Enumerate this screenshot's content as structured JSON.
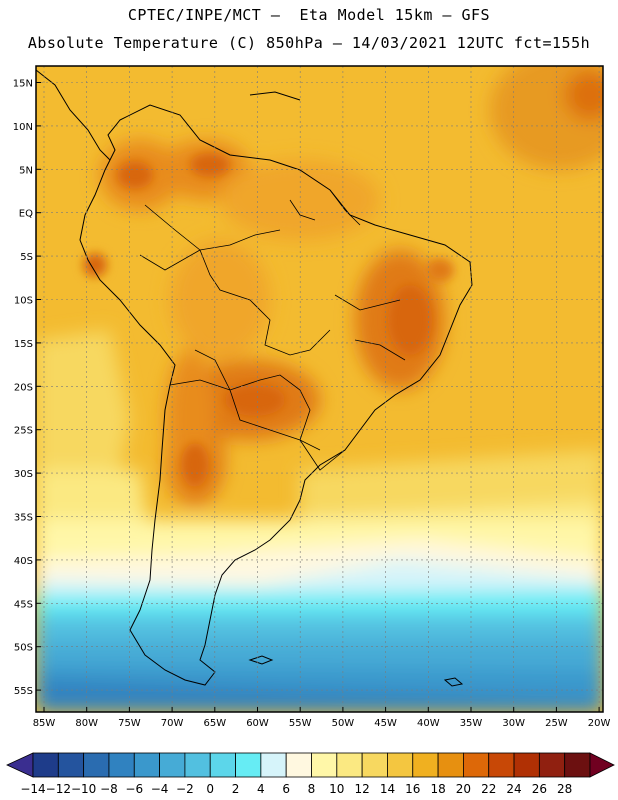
{
  "header": {
    "line1": "CPTEC/INPE/MCT –  Eta Model 15km – GFS",
    "line2": "Absolute Temperature (C) 850hPa – 14/03/2021 12UTC fct=155h"
  },
  "axes": {
    "lat_labels": [
      "15N",
      "10N",
      "5N",
      "EQ",
      "5S",
      "10S",
      "15S",
      "20S",
      "25S",
      "30S",
      "35S",
      "40S",
      "45S",
      "50S",
      "55S"
    ],
    "lon_labels": [
      "85W",
      "80W",
      "75W",
      "70W",
      "65W",
      "60W",
      "55W",
      "50W",
      "45W",
      "40W",
      "35W",
      "30W",
      "25W",
      "20W"
    ]
  },
  "colorbar": {
    "labels": [
      "-14",
      "-12",
      "-10",
      "-8",
      "-6",
      "-4",
      "-2",
      "0",
      "2",
      "4",
      "6",
      "8",
      "10",
      "12",
      "14",
      "16",
      "18",
      "20",
      "22",
      "24",
      "26",
      "28"
    ],
    "colors": [
      "#1e3c8a",
      "#24549e",
      "#2a6cb0",
      "#3082c0",
      "#3a98cc",
      "#46abd6",
      "#52c0e0",
      "#5cd6ea",
      "#66ecf4",
      "#d6f4fa",
      "#fff8e0",
      "#fff7a8",
      "#fbe982",
      "#f7d860",
      "#f4c640",
      "#f0b020",
      "#e79010",
      "#dd6808",
      "#c84806",
      "#b03004",
      "#902010",
      "#6c1010"
    ],
    "under_color": "#3a2e90",
    "over_color": "#700020"
  }
}
